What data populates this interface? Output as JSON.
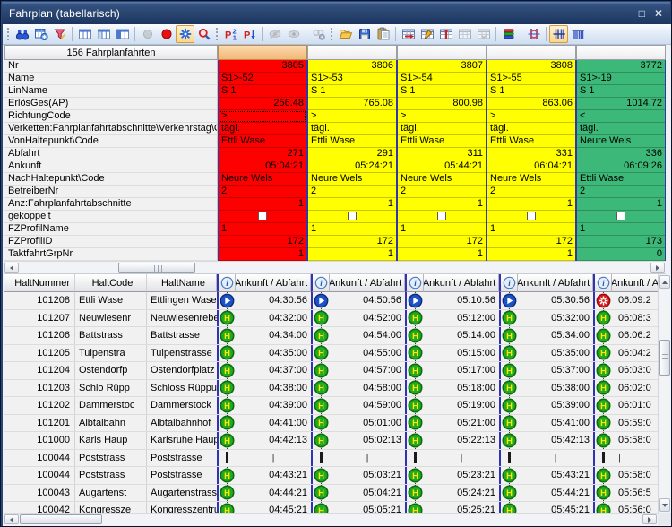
{
  "window": {
    "title": "Fahrplan (tabellarisch)",
    "maximize_glyph": "□",
    "close_glyph": "✕"
  },
  "toolbar": {
    "groups": [
      {
        "lead": "grip",
        "icons": [
          {
            "name": "find-binoculars"
          },
          {
            "name": "add-timetable"
          },
          {
            "name": "filter-funnel"
          }
        ]
      },
      {
        "lead": "sep",
        "icons": [
          {
            "name": "columns-view-1"
          },
          {
            "name": "columns-view-2"
          },
          {
            "name": "columns-view-3"
          }
        ]
      },
      {
        "lead": "sep",
        "icons": [
          {
            "name": "marker-gray-circle",
            "disabled": true
          },
          {
            "name": "marker-red-circle"
          },
          {
            "name": "marker-blue-asterisk",
            "active": true
          },
          {
            "name": "zoom-magnifier"
          }
        ]
      },
      {
        "lead": "grip",
        "icons": [
          {
            "name": "sort-p21"
          },
          {
            "name": "sort-p-down"
          }
        ]
      },
      {
        "lead": "sep",
        "icons": [
          {
            "name": "eye-slash",
            "disabled": true
          },
          {
            "name": "eye",
            "disabled": true
          }
        ]
      },
      {
        "lead": "sep",
        "icons": [
          {
            "name": "link-gear",
            "disabled": true
          }
        ]
      },
      {
        "lead": "grip",
        "icons": [
          {
            "name": "open-folder"
          },
          {
            "name": "save-floppy"
          },
          {
            "name": "paste-clipboard"
          }
        ]
      },
      {
        "lead": "sep",
        "icons": [
          {
            "name": "timetable-shift"
          },
          {
            "name": "timetable-edit"
          },
          {
            "name": "timetable-mark"
          },
          {
            "name": "timetable-gray-a",
            "disabled": true
          },
          {
            "name": "timetable-gray-b",
            "disabled": true
          }
        ]
      },
      {
        "lead": "sep",
        "icons": [
          {
            "name": "layers-rgb"
          }
        ]
      },
      {
        "lead": "sep",
        "icons": [
          {
            "name": "crosshair-columns"
          }
        ]
      },
      {
        "lead": "sep",
        "icons": [
          {
            "name": "column-lines",
            "active": true
          },
          {
            "name": "column-lines-dense"
          }
        ]
      }
    ]
  },
  "upper_table": {
    "count_header": "156 Fahrplanfahrten",
    "attributes": [
      "Nr",
      "Name",
      "LinName",
      "ErlösGes(AP)",
      "RichtungCode",
      "Verketten:Fahrplanfahrtabschnitte\\Verkehrstag\\Code",
      "VonHaltepunkt\\Code",
      "Abfahrt",
      "Ankunft",
      "NachHaltepunkt\\Code",
      "BetreiberNr",
      "Anz:Fahrplanfahrtabschnitte",
      "gekoppelt",
      "FZProfilName",
      "FZProfilID",
      "TaktfahrtGrpNr"
    ],
    "aligns": [
      "right",
      "left",
      "left",
      "right",
      "left",
      "left",
      "left",
      "right",
      "right",
      "left",
      "left",
      "right",
      "checkbox",
      "left",
      "right",
      "right"
    ],
    "columns": [
      {
        "color": "#ff0000",
        "header_selected": true,
        "selected_row_index": 4,
        "values": [
          "3805",
          "S1>-52",
          "S 1",
          "256.48",
          ">",
          "tägl.",
          "Ettli Wase",
          "271",
          "05:04:21",
          "Neure Wels",
          "2",
          "1",
          false,
          "1",
          "172",
          "1"
        ]
      },
      {
        "color": "#ffff00",
        "values": [
          "3806",
          "S1>-53",
          "S 1",
          "765.08",
          ">",
          "tägl.",
          "Ettli Wase",
          "291",
          "05:24:21",
          "Neure Wels",
          "2",
          "1",
          false,
          "1",
          "172",
          "1"
        ]
      },
      {
        "color": "#ffff00",
        "values": [
          "3807",
          "S1>-54",
          "S 1",
          "800.98",
          ">",
          "tägl.",
          "Ettli Wase",
          "311",
          "05:44:21",
          "Neure Wels",
          "2",
          "1",
          false,
          "1",
          "172",
          "1"
        ]
      },
      {
        "color": "#ffff00",
        "values": [
          "3808",
          "S1>-55",
          "S 1",
          "863.06",
          ">",
          "tägl.",
          "Ettli Wase",
          "331",
          "06:04:21",
          "Neure Wels",
          "2",
          "1",
          false,
          "1",
          "172",
          "1"
        ]
      },
      {
        "color": "#3cb878",
        "values": [
          "3772",
          "S1>-19",
          "S 1",
          "1014.72",
          "<",
          "tägl.",
          "Neure Wels",
          "336",
          "06:09:26",
          "Ettli Wase",
          "2",
          "1",
          false,
          "1",
          "173",
          "0"
        ]
      }
    ]
  },
  "lower_table": {
    "columns": [
      "HaltNummer",
      "HaltCode",
      "HaltName"
    ],
    "trip_header": "Ankunft / Abfahrt",
    "stops": [
      {
        "nr": "101208",
        "code": "Ettli Wase",
        "name": "Ettlingen Wasen"
      },
      {
        "nr": "101207",
        "code": "Neuwiesenr",
        "name": "Neuwiesenreben"
      },
      {
        "nr": "101206",
        "code": "Battstrass",
        "name": "Battstrasse"
      },
      {
        "nr": "101205",
        "code": "Tulpenstra",
        "name": "Tulpenstrasse"
      },
      {
        "nr": "101204",
        "code": "Ostendorfp",
        "name": "Ostendorfplatz"
      },
      {
        "nr": "101203",
        "code": "Schlo Rüpp",
        "name": "Schloss Rüppurr"
      },
      {
        "nr": "101202",
        "code": "Dammerstoc",
        "name": "Dammerstock"
      },
      {
        "nr": "101201",
        "code": "Albtalbahn",
        "name": "Albtalbahnhof"
      },
      {
        "nr": "101000",
        "code": "Karls Haup",
        "name": "Karlsruhe Hauptba"
      },
      {
        "nr": "100044",
        "code": "Poststrass",
        "name": "Poststrasse"
      },
      {
        "nr": "100044",
        "code": "Poststrass",
        "name": "Poststrasse"
      },
      {
        "nr": "100043",
        "code": "Augartenst",
        "name": "Augartenstrasse"
      },
      {
        "nr": "100042",
        "code": "Kongressze",
        "name": "Kongresszentrum"
      }
    ],
    "trips": [
      {
        "icons": [
          "start",
          "stop",
          "stop",
          "stop",
          "stop",
          "stop",
          "stop",
          "stop",
          "stop",
          "pass",
          "stop",
          "stop",
          "stop"
        ],
        "times": [
          "04:30:56",
          "04:32:00",
          "04:34:00",
          "04:35:00",
          "04:37:00",
          "04:38:00",
          "04:39:00",
          "04:41:00",
          "04:42:13",
          "|",
          "04:43:21",
          "04:44:21",
          "04:45:21"
        ]
      },
      {
        "icons": [
          "start",
          "stop",
          "stop",
          "stop",
          "stop",
          "stop",
          "stop",
          "stop",
          "stop",
          "pass",
          "stop",
          "stop",
          "stop"
        ],
        "times": [
          "04:50:56",
          "04:52:00",
          "04:54:00",
          "04:55:00",
          "04:57:00",
          "04:58:00",
          "04:59:00",
          "05:01:00",
          "05:02:13",
          "|",
          "05:03:21",
          "05:04:21",
          "05:05:21"
        ]
      },
      {
        "icons": [
          "start",
          "stop",
          "stop",
          "stop",
          "stop",
          "stop",
          "stop",
          "stop",
          "stop",
          "pass",
          "stop",
          "stop",
          "stop"
        ],
        "times": [
          "05:10:56",
          "05:12:00",
          "05:14:00",
          "05:15:00",
          "05:17:00",
          "05:18:00",
          "05:19:00",
          "05:21:00",
          "05:22:13",
          "|",
          "05:23:21",
          "05:24:21",
          "05:25:21"
        ]
      },
      {
        "icons": [
          "start",
          "stop",
          "stop",
          "stop",
          "stop",
          "stop",
          "stop",
          "stop",
          "stop",
          "pass",
          "stop",
          "stop",
          "stop"
        ],
        "times": [
          "05:30:56",
          "05:32:00",
          "05:34:00",
          "05:35:00",
          "05:37:00",
          "05:38:00",
          "05:39:00",
          "05:41:00",
          "05:42:13",
          "|",
          "05:43:21",
          "05:44:21",
          "05:45:21"
        ]
      },
      {
        "clipped": true,
        "icons": [
          "end",
          "stop",
          "stop",
          "stop",
          "stop",
          "stop",
          "stop",
          "stop",
          "stop",
          "pass",
          "stop",
          "stop",
          "stop"
        ],
        "times": [
          "06:09:2",
          "06:08:3",
          "06:06:2",
          "06:04:2",
          "06:03:0",
          "06:02:0",
          "06:01:0",
          "05:59:0",
          "05:58:0",
          "|",
          "05:58:0",
          "05:56:5",
          "05:56:0"
        ]
      }
    ]
  }
}
